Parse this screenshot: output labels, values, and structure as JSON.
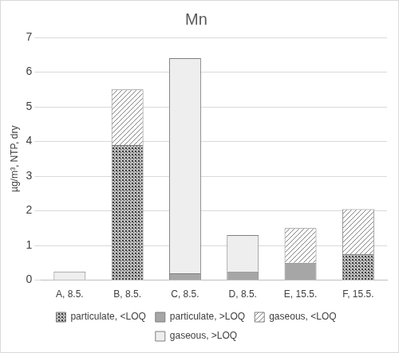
{
  "chart_data": {
    "type": "bar",
    "title": "Mn",
    "y_label": "µg/m³, NTP, dry",
    "categories": [
      "A, 8.5.",
      "B, 8.5.",
      "C, 8.5.",
      "D, 8.5.",
      "E, 15.5.",
      "F, 15.5."
    ],
    "series": [
      {
        "name": "particulate, <LOQ",
        "color": "#404040",
        "values": [
          0,
          3.9,
          0,
          0,
          0,
          0.75
        ]
      },
      {
        "name": "particulate, >LOQ",
        "color": "#a6a6a6",
        "values": [
          0,
          0,
          0.2,
          0.25,
          0.5,
          0
        ]
      },
      {
        "name": "gaseous, <LOQ",
        "color": "#7f7f7f",
        "values": [
          0,
          1.6,
          0,
          0,
          1.0,
          1.3
        ]
      },
      {
        "name": "gaseous, >LOQ",
        "color": "#eeeeee",
        "values": [
          0.25,
          0,
          6.2,
          1.05,
          0,
          0
        ]
      }
    ],
    "stacked": true,
    "grid": true,
    "legend": "bottom",
    "ylim": [
      0,
      7
    ],
    "yticks": [
      0,
      1,
      2,
      3,
      4,
      5,
      6,
      7
    ]
  }
}
